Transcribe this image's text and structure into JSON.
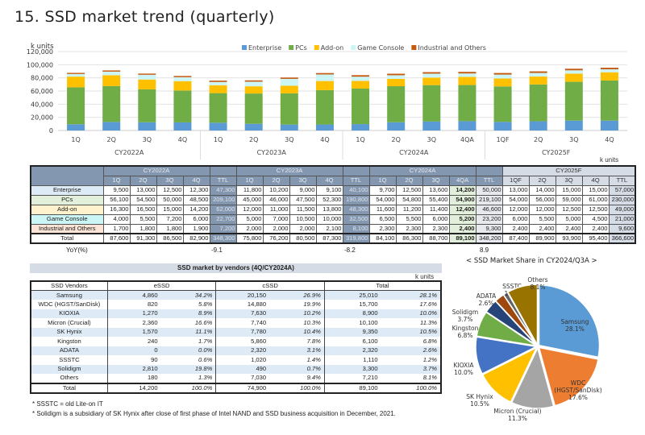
{
  "title": "15. SSD market trend (quarterly)",
  "chart_data": [
    {
      "type": "bar",
      "stacked": true,
      "ylabel": "k units",
      "ylim": [
        0,
        120000
      ],
      "yticks": [
        "0",
        "20,000",
        "40,000",
        "60,000",
        "80,000",
        "100,000",
        "120,000"
      ],
      "grid": true,
      "legend_position": "top-right",
      "categories": [
        "1Q",
        "2Q",
        "3Q",
        "4Q",
        "1Q",
        "2Q",
        "3Q",
        "4Q",
        "1Q",
        "2Q",
        "3Q",
        "4QA",
        "1QF",
        "2Q",
        "3Q",
        "4Q"
      ],
      "groups": [
        "CY2022A",
        "CY2023A",
        "CY2024A",
        "CY2025F"
      ],
      "series": [
        {
          "name": "Enterprise",
          "color": "#5b9bd5",
          "values": [
            9500,
            13000,
            12500,
            12300,
            11800,
            10200,
            9000,
            9100,
            9700,
            12500,
            13600,
            14200,
            13000,
            14000,
            15000,
            15000
          ]
        },
        {
          "name": "PCs",
          "color": "#70ad47",
          "values": [
            56100,
            54500,
            50000,
            48500,
            45000,
            46000,
            47500,
            52300,
            54000,
            54800,
            55400,
            54900,
            54000,
            56000,
            59000,
            61000
          ]
        },
        {
          "name": "Add-on",
          "color": "#ffc000",
          "values": [
            16300,
            16500,
            15000,
            14200,
            12000,
            11000,
            11500,
            13800,
            11600,
            11200,
            11400,
            12400,
            12000,
            12000,
            12500,
            12500
          ]
        },
        {
          "name": "Game Console",
          "color": "#ccf5f5",
          "values": [
            4000,
            5500,
            7200,
            6000,
            5000,
            7000,
            10500,
            10000,
            6500,
            5500,
            6000,
            5200,
            6000,
            5500,
            5000,
            4500
          ]
        },
        {
          "name": "Industrial and Others",
          "color": "#c55a11",
          "values": [
            1700,
            1800,
            1800,
            1900,
            2000,
            2000,
            2000,
            2100,
            2300,
            2300,
            2300,
            2400,
            2400,
            2400,
            2400,
            2400
          ]
        }
      ]
    },
    {
      "type": "pie",
      "title": "< SSD Market Share in CY2024/Q3A >",
      "slices": [
        {
          "label": "Samsung",
          "value": 28.1,
          "text": "28.1%",
          "color": "#5b9bd5"
        },
        {
          "label": "WDC (HGST/SanDisk)",
          "value": 17.6,
          "text": "17.6%",
          "color": "#ed7d31"
        },
        {
          "label": "Micron (Crucial)",
          "value": 11.3,
          "text": "11.3%",
          "color": "#a5a5a5"
        },
        {
          "label": "SK Hynix",
          "value": 10.5,
          "text": "10.5%",
          "color": "#ffc000"
        },
        {
          "label": "KIOXIA",
          "value": 10.0,
          "text": "10.0%",
          "color": "#4472c4"
        },
        {
          "label": "Kingston",
          "value": 6.8,
          "text": "6.8%",
          "color": "#70ad47"
        },
        {
          "label": "Solidigm",
          "value": 3.7,
          "text": "3.7%",
          "color": "#264478"
        },
        {
          "label": "ADATA",
          "value": 2.6,
          "text": "2.6%",
          "color": "#9e480e"
        },
        {
          "label": "SSSTC",
          "value": 1.2,
          "text": "1.2%",
          "color": "#636363"
        },
        {
          "label": "Others",
          "value": 8.1,
          "text": "8.1%",
          "color": "#997300"
        }
      ]
    }
  ],
  "trend_table": {
    "unit": "k units",
    "years": [
      "CY2022A",
      "CY2023A",
      "CY2024A",
      "CY2025F"
    ],
    "subheaders": [
      [
        "1Q",
        "2Q",
        "3Q",
        "4Q",
        "TTL"
      ],
      [
        "1Q",
        "2Q",
        "3Q",
        "4Q",
        "TTL"
      ],
      [
        "1Q",
        "2Q",
        "3Q",
        "4QA",
        "TTL"
      ],
      [
        "1QF",
        "2Q",
        "3Q",
        "4Q",
        "TTL"
      ]
    ],
    "rows": [
      {
        "label": "Enterprise",
        "color": "#ddebf7",
        "cells": [
          "9,500",
          "13,000",
          "12,500",
          "12,300",
          "47,300",
          "11,800",
          "10,200",
          "9,000",
          "9,100",
          "40,100",
          "9,700",
          "12,500",
          "13,600",
          "14,200",
          "50,000",
          "13,000",
          "14,000",
          "15,000",
          "15,000",
          "57,000"
        ]
      },
      {
        "label": "PCs",
        "color": "#e2efda",
        "cells": [
          "56,100",
          "54,500",
          "50,000",
          "48,500",
          "209,100",
          "45,000",
          "46,000",
          "47,500",
          "52,300",
          "190,800",
          "54,000",
          "54,800",
          "55,400",
          "54,900",
          "219,100",
          "54,000",
          "56,000",
          "59,000",
          "61,000",
          "230,000"
        ]
      },
      {
        "label": "Add-on",
        "color": "#fff2cc",
        "cells": [
          "16,300",
          "16,500",
          "15,000",
          "14,200",
          "62,000",
          "12,000",
          "11,000",
          "11,500",
          "13,800",
          "48,300",
          "11,600",
          "11,200",
          "11,400",
          "12,400",
          "46,600",
          "12,000",
          "12,000",
          "12,500",
          "12,500",
          "49,000"
        ]
      },
      {
        "label": "Game Console",
        "color": "#ccf5f5",
        "cells": [
          "4,000",
          "5,500",
          "7,200",
          "6,000",
          "22,700",
          "5,000",
          "7,000",
          "10,500",
          "10,000",
          "32,500",
          "6,500",
          "5,500",
          "6,000",
          "5,200",
          "23,200",
          "6,000",
          "5,500",
          "5,000",
          "4,500",
          "21,000"
        ]
      },
      {
        "label": "Industrial and Others",
        "color": "#fce4d6",
        "cells": [
          "1,700",
          "1,800",
          "1,800",
          "1,900",
          "7,200",
          "2,000",
          "2,000",
          "2,000",
          "2,100",
          "8,100",
          "2,300",
          "2,300",
          "2,300",
          "2,400",
          "9,300",
          "2,400",
          "2,400",
          "2,400",
          "2,400",
          "9,600"
        ]
      },
      {
        "label": "Total",
        "color": "#ffffff",
        "cells": [
          "87,600",
          "91,300",
          "86,500",
          "82,900",
          "348,300",
          "75,800",
          "76,200",
          "80,500",
          "87,300",
          "319,800",
          "84,100",
          "86,300",
          "88,700",
          "89,100",
          "348,200",
          "87,400",
          "89,900",
          "93,900",
          "95,400",
          "366,600"
        ]
      }
    ],
    "yoy_label": "YoY(%)",
    "yoy": [
      "-9.1",
      "-8.2",
      "8.9"
    ]
  },
  "vendor_table": {
    "title": "SSD market by vendors (4Q/CY2024A)",
    "unit": "k units",
    "headers": [
      "SSD Vendors",
      "eSSD",
      "cSSD",
      "Total"
    ],
    "rows": [
      [
        "Samsung",
        "4,860",
        "34.2%",
        "20,150",
        "26.9%",
        "25,010",
        "28.1%"
      ],
      [
        "WDC (HGST/SanDisk)",
        "820",
        "5.8%",
        "14,880",
        "19.9%",
        "15,700",
        "17.6%"
      ],
      [
        "KIOXIA",
        "1,270",
        "8.9%",
        "7,630",
        "10.2%",
        "8,900",
        "10.0%"
      ],
      [
        "Micron (Crucial)",
        "2,360",
        "16.6%",
        "7,740",
        "10.3%",
        "10,100",
        "11.3%"
      ],
      [
        "SK Hynix",
        "1,570",
        "11.1%",
        "7,780",
        "10.4%",
        "9,350",
        "10.5%"
      ],
      [
        "Kingston",
        "240",
        "1.7%",
        "5,860",
        "7.8%",
        "6,100",
        "6.8%"
      ],
      [
        "ADATA",
        "0",
        "0.0%",
        "2,320",
        "3.1%",
        "2,320",
        "2.6%"
      ],
      [
        "SSSTC",
        "90",
        "0.6%",
        "1,020",
        "1.4%",
        "1,110",
        "1.2%"
      ],
      [
        "Solidigm",
        "2,810",
        "19.8%",
        "490",
        "0.7%",
        "3,300",
        "3.7%"
      ],
      [
        "Others",
        "180",
        "1.3%",
        "7,030",
        "9.4%",
        "7,210",
        "8.1%"
      ]
    ],
    "total": [
      "Total",
      "14,200",
      "100.0%",
      "74,900",
      "100.0%",
      "89,100",
      "100.0%"
    ]
  },
  "notes": [
    "* SSSTC = old Lite-on IT",
    "* Solidigm is a subsidiary of SK Hynix after close of first phase of Intel NAND and SSD business acquisition in December, 2021."
  ]
}
